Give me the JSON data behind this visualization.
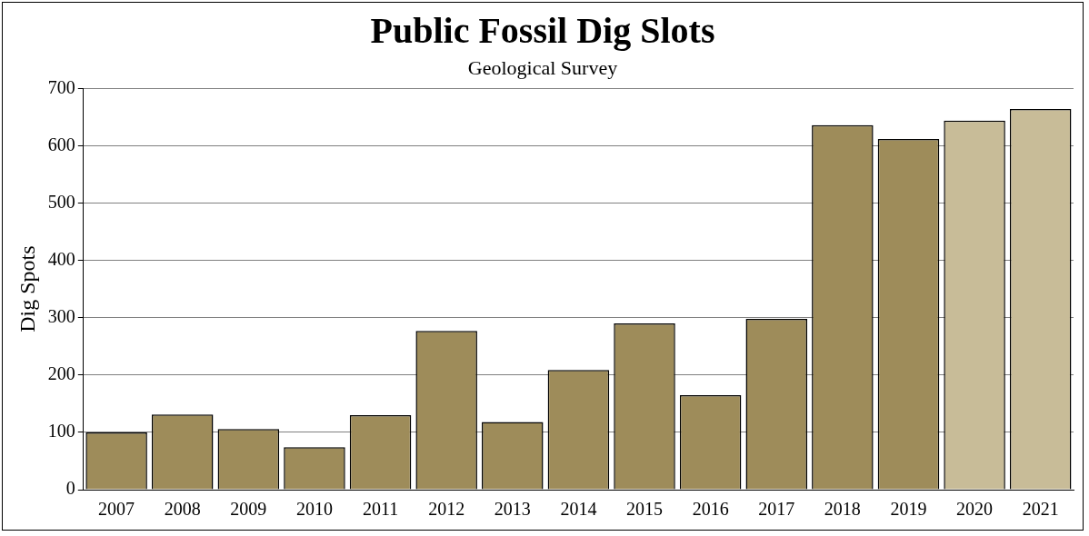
{
  "chart_data": {
    "type": "bar",
    "title": "Public Fossil Dig Slots",
    "subtitle": "Geological Survey",
    "ylabel": "Dig Spots",
    "categories": [
      "2007",
      "2008",
      "2009",
      "2010",
      "2011",
      "2012",
      "2013",
      "2014",
      "2015",
      "2016",
      "2017",
      "2018",
      "2019",
      "2020",
      "2021"
    ],
    "values": [
      100,
      131,
      106,
      74,
      130,
      277,
      118,
      209,
      290,
      165,
      298,
      636,
      612,
      644,
      664
    ],
    "colors": [
      "#9e8c5a",
      "#9e8c5a",
      "#9e8c5a",
      "#9e8c5a",
      "#9e8c5a",
      "#9e8c5a",
      "#9e8c5a",
      "#9e8c5a",
      "#9e8c5a",
      "#9e8c5a",
      "#9e8c5a",
      "#9e8c5a",
      "#9e8c5a",
      "#c8bc98",
      "#c8bc98"
    ],
    "ylim": [
      0,
      700
    ],
    "yticks": [
      0,
      100,
      200,
      300,
      400,
      500,
      600,
      700
    ],
    "grid": "y",
    "legend": false
  }
}
